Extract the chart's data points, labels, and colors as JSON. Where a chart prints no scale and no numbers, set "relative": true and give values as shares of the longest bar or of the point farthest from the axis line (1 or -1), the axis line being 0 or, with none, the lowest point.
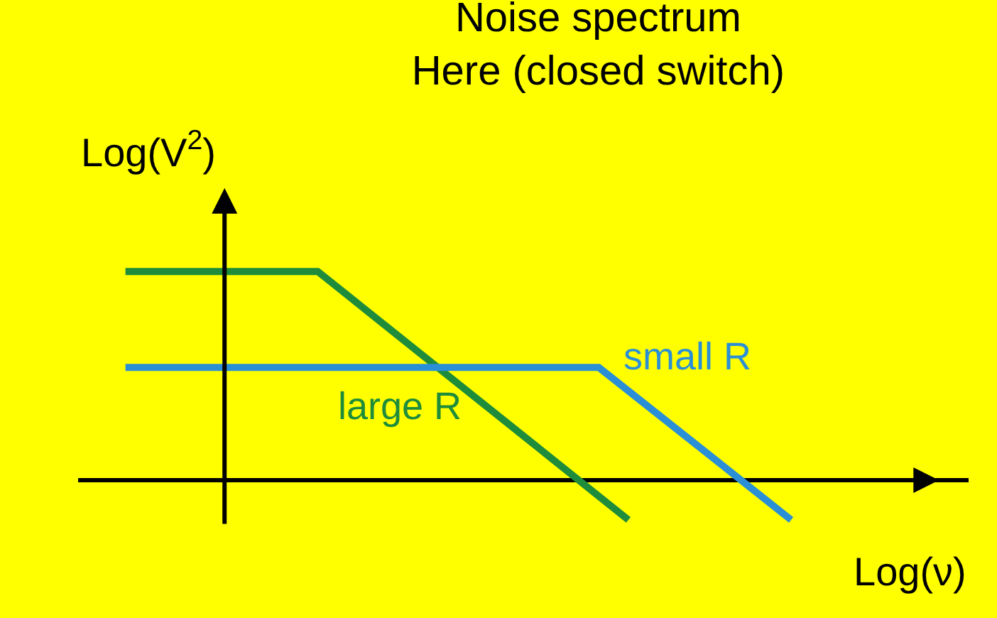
{
  "chart_data": {
    "type": "line",
    "relative": true,
    "title": "Noise spectrum\nHere (closed switch)",
    "xlabel": "Log(ν)",
    "ylabel": "Log(V$^{2}$)",
    "grid": false,
    "legend": false,
    "marker": "none",
    "line_style": "solid",
    "categories": [
      null,
      null,
      null,
      null,
      null,
      null,
      null,
      null,
      null,
      null,
      null,
      null,
      null,
      null,
      null,
      null,
      null,
      null,
      null,
      null,
      null,
      null,
      null,
      null,
      null,
      null,
      null,
      null,
      null,
      null,
      null,
      null,
      null,
      null,
      null,
      null,
      null,
      null,
      null,
      null,
      null,
      null,
      null,
      null,
      null,
      null
    ],
    "series": [
      {
        "name": "large R",
        "color": "#1e8c3a",
        "values": [
          1,
          null,
          null,
          null,
          null,
          null,
          null,
          null,
          null,
          null,
          null,
          null,
          null,
          1,
          null,
          null,
          null,
          null,
          null,
          null,
          null,
          null,
          null,
          null,
          null,
          null,
          null,
          null,
          null,
          null,
          null,
          null,
          null,
          null,
          -0.19,
          null,
          null,
          null,
          null,
          null,
          null,
          null,
          null,
          null,
          null,
          null
        ]
      },
      {
        "name": "small R",
        "color": "#2b8fd6",
        "values": [
          0.54,
          null,
          null,
          null,
          null,
          null,
          null,
          null,
          null,
          null,
          null,
          null,
          null,
          null,
          null,
          null,
          null,
          null,
          null,
          null,
          null,
          null,
          null,
          null,
          null,
          null,
          null,
          null,
          null,
          null,
          null,
          null,
          0.54,
          null,
          null,
          null,
          null,
          null,
          null,
          null,
          null,
          null,
          null,
          null,
          null,
          -0.19
        ]
      }
    ]
  }
}
